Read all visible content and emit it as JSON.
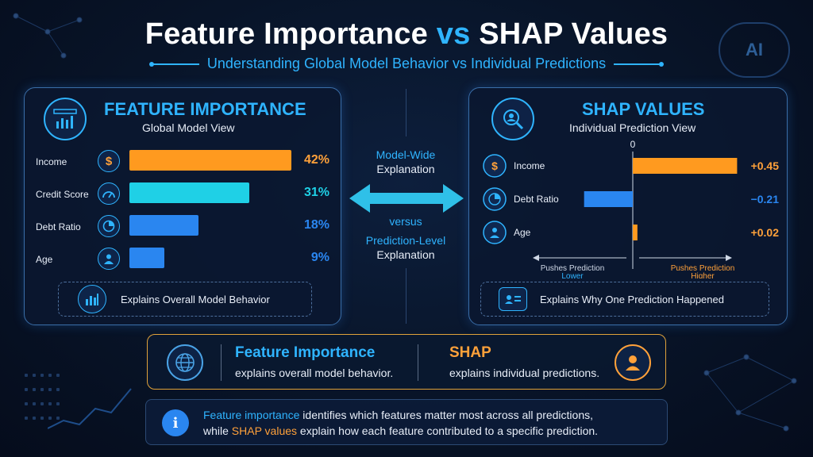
{
  "title": {
    "part1": "Feature Importance",
    "vs": "vs",
    "part2": "SHAP Values"
  },
  "subtitle": "Understanding Global Model Behavior vs Individual Predictions",
  "corner_badge": "AI",
  "left_panel": {
    "title": "FEATURE IMPORTANCE",
    "subtitle": "Global Model View",
    "rows": [
      {
        "label": "Income",
        "icon": "dollar-icon",
        "value": 42,
        "value_label": "42%",
        "color": "#ff9a1f"
      },
      {
        "label": "Credit Score",
        "icon": "gauge-icon",
        "value": 31,
        "value_label": "31%",
        "color": "#1fd0e6"
      },
      {
        "label": "Debt Ratio",
        "icon": "pie-icon",
        "value": 18,
        "value_label": "18%",
        "color": "#2a86f0"
      },
      {
        "label": "Age",
        "icon": "person-icon",
        "value": 9,
        "value_label": "9%",
        "color": "#2a86f0"
      }
    ],
    "footer": "Explains Overall Model Behavior"
  },
  "middle": {
    "top_line1": "Model-Wide",
    "top_line2": "Explanation",
    "versus": "versus",
    "bottom_line1": "Prediction-Level",
    "bottom_line2": "Explanation"
  },
  "right_panel": {
    "title": "SHAP VALUES",
    "subtitle": "Individual Prediction View",
    "axis_zero": "0",
    "rows": [
      {
        "label": "Income",
        "icon": "dollar-icon",
        "value": 0.45,
        "value_label": "+0.45",
        "color": "#ff9a1f"
      },
      {
        "label": "Debt Ratio",
        "icon": "pie-icon",
        "value": -0.21,
        "value_label": "−0.21",
        "color": "#2a86f0"
      },
      {
        "label": "Age",
        "icon": "person-icon",
        "value": 0.02,
        "value_label": "+0.02",
        "color": "#ff9a1f"
      }
    ],
    "lower_label_1": "Pushes Prediction",
    "lower_label_2": "Lower",
    "higher_label_1": "Pushes Prediction",
    "higher_label_2": "Higher",
    "footer": "Explains Why One Prediction Happened"
  },
  "summary": {
    "left_title": "Feature Importance",
    "left_text": "explains overall model behavior.",
    "right_title": "SHAP",
    "right_text": "explains individual predictions."
  },
  "note": {
    "highlight1": "Feature importance",
    "text1": " identifies which features matter most across all predictions,",
    "text2_pre": "while ",
    "highlight2": "SHAP values",
    "text2_post": " explain how each feature contributed to a specific prediction."
  },
  "chart_data": [
    {
      "type": "bar",
      "categories": [
        "Income",
        "Credit Score",
        "Debt Ratio",
        "Age"
      ],
      "values": [
        42,
        31,
        18,
        9
      ],
      "title": "FEATURE IMPORTANCE",
      "xlabel": "",
      "ylabel": ""
    },
    {
      "type": "bar",
      "categories": [
        "Income",
        "Debt Ratio",
        "Age"
      ],
      "values": [
        0.45,
        -0.21,
        0.02
      ],
      "title": "SHAP VALUES",
      "xlabel": "",
      "ylabel": ""
    }
  ]
}
